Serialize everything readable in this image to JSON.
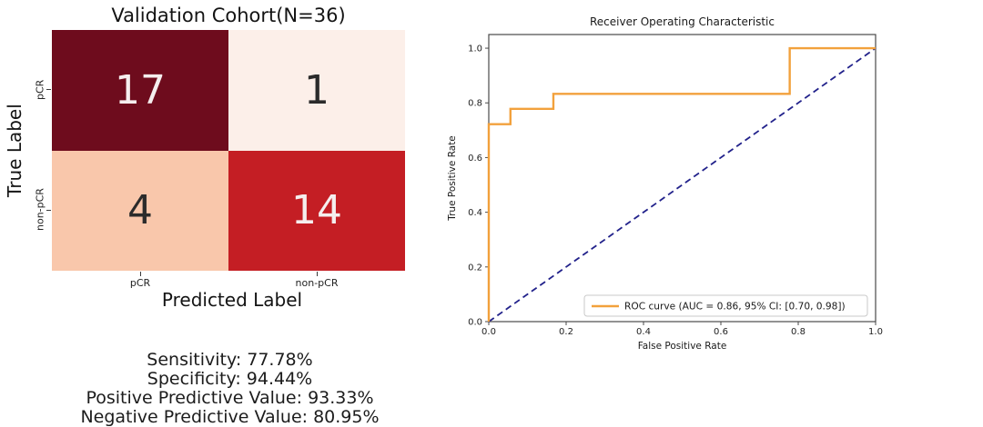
{
  "stats": {
    "lines": [
      "Sensitivity: 77.78%",
      "Specificity: 94.44%",
      "Positive Predictive Value: 93.33%",
      "Negative Predictive Value: 80.95%"
    ]
  },
  "chart_data": [
    {
      "type": "heatmap",
      "title": "Validation Cohort(N=36)",
      "xlabel": "Predicted Label",
      "ylabel": "True Label",
      "x_categories": [
        "pCR",
        "non-pCR"
      ],
      "y_categories": [
        "pCR",
        "non-pCR"
      ],
      "values": [
        [
          17,
          1
        ],
        [
          4,
          14
        ]
      ],
      "cell_colors": [
        [
          "#6e0c1d",
          "#fcefe9"
        ],
        [
          "#f9c7ab",
          "#c41e24"
        ]
      ],
      "cell_text_colors": [
        [
          "#f5eeee",
          "#2b2b2b"
        ],
        [
          "#2b2b2b",
          "#f5eeee"
        ]
      ],
      "colormap": "Reds"
    },
    {
      "type": "line",
      "title": "Receiver Operating Characteristic",
      "xlabel": "False Positive Rate",
      "ylabel": "True Positive Rate",
      "xlim": [
        0.0,
        1.0
      ],
      "ylim": [
        0.0,
        1.05
      ],
      "xticks": [
        "0.0",
        "0.2",
        "0.4",
        "0.6",
        "0.8",
        "1.0"
      ],
      "yticks": [
        "0.0",
        "0.2",
        "0.4",
        "0.6",
        "0.8",
        "1.0"
      ],
      "grid": false,
      "legend_position": "lower right",
      "series": [
        {
          "name": "chance-diagonal",
          "color": "#22228b",
          "dashed": true,
          "points": [
            [
              0,
              0
            ],
            [
              1,
              1
            ]
          ]
        },
        {
          "name": "ROC curve",
          "color": "#f2a13c",
          "dashed": false,
          "points": [
            [
              0,
              0
            ],
            [
              0,
              0.722
            ],
            [
              0.056,
              0.722
            ],
            [
              0.056,
              0.778
            ],
            [
              0.167,
              0.778
            ],
            [
              0.167,
              0.833
            ],
            [
              0.778,
              0.833
            ],
            [
              0.778,
              1.0
            ],
            [
              1.0,
              1.0
            ]
          ]
        }
      ],
      "legend_label": "ROC curve (AUC = 0.86, 95% CI: [0.70, 0.98])",
      "auc": 0.86,
      "ci_95": [
        0.7,
        0.98
      ]
    }
  ]
}
